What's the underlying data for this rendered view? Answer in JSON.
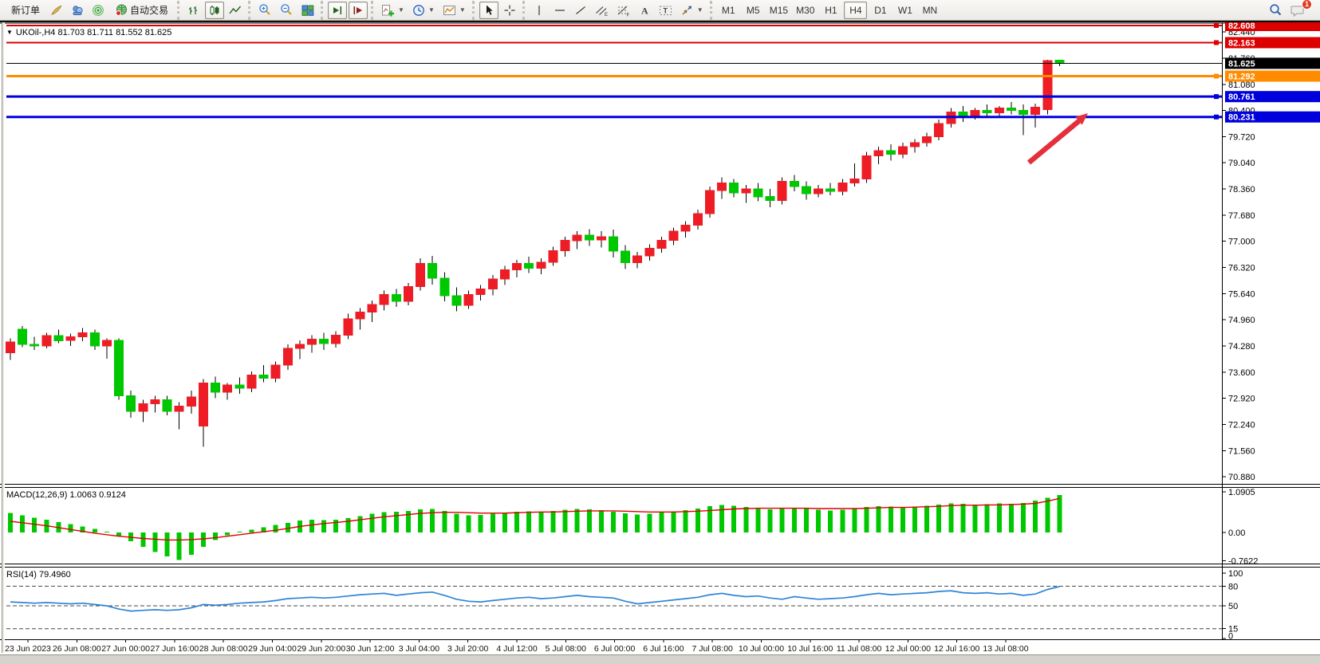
{
  "toolbar": {
    "new_order_label": "新订单",
    "autotrade_label": "自动交易",
    "timeframes": [
      "M1",
      "M5",
      "M15",
      "M30",
      "H1",
      "H4",
      "D1",
      "W1",
      "MN"
    ],
    "active_timeframe": "H4",
    "notification_count": "1"
  },
  "chart": {
    "symbol_title": "UKOil-,H4  81.703 81.711 81.552 81.625",
    "macd_label": "MACD(12,26,9) 1.0063 0.9124",
    "rsi_label": "RSI(14) 79.4960"
  },
  "chart_data": {
    "type": "candlestick",
    "symbol": "UKOil-",
    "timeframe": "H4",
    "ohlc_current": {
      "open": 81.703,
      "high": 81.711,
      "low": 81.552,
      "close": 81.625
    },
    "current_price": {
      "label": "81.625",
      "value": 81.625
    },
    "levels": [
      {
        "label": "82.608",
        "value": 82.608,
        "color": "#dd0000",
        "thickness": 2
      },
      {
        "label": "82.163",
        "value": 82.163,
        "color": "#dd0000",
        "thickness": 2
      },
      {
        "label": "81.292",
        "value": 81.292,
        "color": "#ff8c00",
        "thickness": 3
      },
      {
        "label": "80.761",
        "value": 80.761,
        "color": "#0000dd",
        "thickness": 3
      },
      {
        "label": "80.231",
        "value": 80.231,
        "color": "#0000dd",
        "thickness": 3
      }
    ],
    "price_ticks": [
      "82.440",
      "81.760",
      "81.080",
      "80.400",
      "79.720",
      "79.040",
      "78.360",
      "77.680",
      "77.000",
      "76.320",
      "75.640",
      "74.960",
      "74.280",
      "73.600",
      "72.920",
      "72.240",
      "71.560",
      "70.880"
    ],
    "dates": [
      "23 Jun 2023",
      "26 Jun 08:00",
      "27 Jun 00:00",
      "27 Jun 16:00",
      "28 Jun 08:00",
      "29 Jun 04:00",
      "29 Jun 20:00",
      "30 Jun 12:00",
      "3 Jul 04:00",
      "3 Jul 20:00",
      "4 Jul 12:00",
      "5 Jul 08:00",
      "6 Jul 00:00",
      "6 Jul 16:00",
      "7 Jul 08:00",
      "10 Jul 00:00",
      "10 Jul 16:00",
      "11 Jul 08:00",
      "12 Jul 00:00",
      "12 Jul 16:00",
      "13 Jul 08:00"
    ],
    "candles": [
      [
        74.1,
        74.48,
        73.92,
        74.38
      ],
      [
        74.72,
        74.8,
        74.25,
        74.32
      ],
      [
        74.32,
        74.52,
        74.18,
        74.28
      ],
      [
        74.28,
        74.62,
        74.22,
        74.55
      ],
      [
        74.55,
        74.7,
        74.35,
        74.42
      ],
      [
        74.42,
        74.6,
        74.28,
        74.52
      ],
      [
        74.52,
        74.75,
        74.4,
        74.62
      ],
      [
        74.62,
        74.7,
        74.18,
        74.28
      ],
      [
        74.28,
        74.48,
        73.95,
        74.42
      ],
      [
        74.42,
        74.48,
        72.88,
        72.98
      ],
      [
        72.98,
        73.12,
        72.42,
        72.58
      ],
      [
        72.58,
        72.88,
        72.3,
        72.78
      ],
      [
        72.78,
        72.98,
        72.55,
        72.88
      ],
      [
        72.88,
        72.98,
        72.48,
        72.58
      ],
      [
        72.58,
        72.82,
        72.12,
        72.72
      ],
      [
        72.72,
        73.12,
        72.52,
        72.95
      ],
      [
        72.2,
        73.42,
        71.66,
        73.32
      ],
      [
        73.32,
        73.48,
        72.92,
        73.08
      ],
      [
        73.08,
        73.32,
        72.88,
        73.26
      ],
      [
        73.26,
        73.46,
        73.04,
        73.18
      ],
      [
        73.18,
        73.62,
        73.08,
        73.52
      ],
      [
        73.52,
        73.78,
        73.34,
        73.44
      ],
      [
        73.44,
        73.88,
        73.34,
        73.78
      ],
      [
        73.78,
        74.32,
        73.66,
        74.22
      ],
      [
        74.22,
        74.42,
        73.94,
        74.32
      ],
      [
        74.32,
        74.56,
        74.1,
        74.46
      ],
      [
        74.46,
        74.62,
        74.18,
        74.34
      ],
      [
        74.34,
        74.66,
        74.24,
        74.56
      ],
      [
        74.56,
        75.12,
        74.46,
        74.98
      ],
      [
        74.98,
        75.26,
        74.7,
        75.16
      ],
      [
        75.16,
        75.46,
        74.9,
        75.36
      ],
      [
        75.36,
        75.72,
        75.2,
        75.62
      ],
      [
        75.62,
        75.76,
        75.3,
        75.44
      ],
      [
        75.44,
        75.92,
        75.34,
        75.82
      ],
      [
        75.82,
        76.56,
        75.72,
        76.42
      ],
      [
        76.42,
        76.62,
        75.88,
        76.04
      ],
      [
        76.04,
        76.2,
        75.44,
        75.58
      ],
      [
        75.58,
        75.8,
        75.18,
        75.34
      ],
      [
        75.34,
        75.72,
        75.24,
        75.62
      ],
      [
        75.62,
        75.86,
        75.46,
        75.76
      ],
      [
        75.76,
        76.12,
        75.6,
        76.02
      ],
      [
        76.02,
        76.36,
        75.86,
        76.26
      ],
      [
        76.26,
        76.52,
        76.06,
        76.42
      ],
      [
        76.42,
        76.6,
        76.18,
        76.3
      ],
      [
        76.3,
        76.56,
        76.14,
        76.46
      ],
      [
        76.46,
        76.86,
        76.36,
        76.76
      ],
      [
        76.76,
        77.12,
        76.6,
        77.02
      ],
      [
        77.02,
        77.26,
        76.8,
        77.16
      ],
      [
        77.16,
        77.32,
        76.88,
        77.04
      ],
      [
        77.04,
        77.26,
        76.84,
        77.12
      ],
      [
        77.12,
        77.3,
        76.58,
        76.74
      ],
      [
        76.74,
        76.9,
        76.28,
        76.44
      ],
      [
        76.44,
        76.72,
        76.3,
        76.62
      ],
      [
        76.62,
        76.92,
        76.5,
        76.82
      ],
      [
        76.82,
        77.12,
        76.7,
        77.02
      ],
      [
        77.02,
        77.36,
        76.9,
        77.26
      ],
      [
        77.26,
        77.52,
        77.1,
        77.42
      ],
      [
        77.42,
        77.82,
        77.3,
        77.72
      ],
      [
        77.72,
        78.42,
        77.62,
        78.32
      ],
      [
        78.32,
        78.66,
        78.1,
        78.52
      ],
      [
        78.52,
        78.62,
        78.14,
        78.26
      ],
      [
        78.26,
        78.46,
        78.0,
        78.36
      ],
      [
        78.36,
        78.52,
        78.04,
        78.16
      ],
      [
        78.16,
        78.36,
        77.88,
        78.06
      ],
      [
        78.06,
        78.66,
        77.96,
        78.56
      ],
      [
        78.56,
        78.72,
        78.3,
        78.42
      ],
      [
        78.42,
        78.56,
        78.08,
        78.24
      ],
      [
        78.24,
        78.46,
        78.14,
        78.36
      ],
      [
        78.36,
        78.52,
        78.2,
        78.3
      ],
      [
        78.3,
        78.62,
        78.2,
        78.52
      ],
      [
        78.52,
        79.02,
        78.42,
        78.62
      ],
      [
        78.62,
        79.32,
        78.52,
        79.22
      ],
      [
        79.22,
        79.46,
        79.0,
        79.36
      ],
      [
        79.36,
        79.52,
        79.1,
        79.26
      ],
      [
        79.26,
        79.56,
        79.16,
        79.46
      ],
      [
        79.46,
        79.66,
        79.3,
        79.56
      ],
      [
        79.56,
        79.82,
        79.46,
        79.72
      ],
      [
        79.72,
        80.16,
        79.62,
        80.06
      ],
      [
        80.06,
        80.46,
        79.96,
        80.36
      ],
      [
        80.36,
        80.52,
        80.1,
        80.26
      ],
      [
        80.26,
        80.46,
        80.16,
        80.4
      ],
      [
        80.4,
        80.56,
        80.26,
        80.34
      ],
      [
        80.34,
        80.52,
        80.2,
        80.46
      ],
      [
        80.46,
        80.62,
        80.3,
        80.4
      ],
      [
        80.4,
        80.56,
        79.76,
        80.3
      ],
      [
        80.3,
        80.58,
        79.96,
        80.48
      ],
      [
        80.42,
        81.72,
        80.3,
        81.7
      ],
      [
        81.703,
        81.711,
        81.552,
        81.625
      ]
    ],
    "macd": {
      "params": "12,26,9",
      "main_value": 1.0063,
      "signal_value": 0.9124,
      "ticks": [
        "1.0905",
        "0.00",
        "-0.7622"
      ],
      "hist": [
        0.52,
        0.46,
        0.4,
        0.34,
        0.28,
        0.22,
        0.16,
        0.1,
        0.02,
        -0.1,
        -0.24,
        -0.38,
        -0.52,
        -0.64,
        -0.74,
        -0.6,
        -0.38,
        -0.2,
        -0.08,
        0.02,
        0.08,
        0.14,
        0.2,
        0.26,
        0.32,
        0.34,
        0.33,
        0.34,
        0.38,
        0.44,
        0.5,
        0.55,
        0.56,
        0.58,
        0.62,
        0.63,
        0.58,
        0.5,
        0.46,
        0.47,
        0.5,
        0.53,
        0.56,
        0.57,
        0.56,
        0.58,
        0.61,
        0.63,
        0.62,
        0.6,
        0.56,
        0.51,
        0.48,
        0.5,
        0.53,
        0.57,
        0.6,
        0.64,
        0.7,
        0.74,
        0.72,
        0.68,
        0.65,
        0.62,
        0.64,
        0.66,
        0.64,
        0.61,
        0.59,
        0.61,
        0.64,
        0.68,
        0.71,
        0.69,
        0.67,
        0.69,
        0.72,
        0.75,
        0.78,
        0.77,
        0.75,
        0.76,
        0.78,
        0.77,
        0.79,
        0.85,
        0.93,
        1.0063
      ],
      "signal": [
        0.3,
        0.26,
        0.22,
        0.18,
        0.13,
        0.08,
        0.03,
        -0.02,
        -0.06,
        -0.1,
        -0.13,
        -0.16,
        -0.18,
        -0.2,
        -0.2,
        -0.19,
        -0.17,
        -0.14,
        -0.1,
        -0.06,
        -0.02,
        0.02,
        0.06,
        0.11,
        0.16,
        0.2,
        0.24,
        0.27,
        0.3,
        0.34,
        0.38,
        0.42,
        0.45,
        0.48,
        0.51,
        0.53,
        0.54,
        0.54,
        0.53,
        0.52,
        0.52,
        0.52,
        0.53,
        0.54,
        0.55,
        0.55,
        0.56,
        0.57,
        0.58,
        0.58,
        0.58,
        0.57,
        0.56,
        0.55,
        0.55,
        0.55,
        0.56,
        0.57,
        0.59,
        0.61,
        0.63,
        0.64,
        0.65,
        0.65,
        0.65,
        0.65,
        0.65,
        0.64,
        0.64,
        0.64,
        0.64,
        0.65,
        0.66,
        0.67,
        0.67,
        0.68,
        0.69,
        0.7,
        0.72,
        0.73,
        0.73,
        0.74,
        0.74,
        0.75,
        0.76,
        0.78,
        0.84,
        0.9124
      ]
    },
    "rsi": {
      "period": 14,
      "value": 79.496,
      "ticks": [
        "100",
        "80",
        "50",
        "15",
        "0"
      ],
      "levels": [
        80,
        50,
        15
      ],
      "series": [
        56,
        55,
        54,
        55,
        54,
        53,
        54,
        52,
        50,
        45,
        42,
        43,
        44,
        43,
        44,
        47,
        52,
        51,
        52,
        54,
        55,
        56,
        58,
        61,
        62,
        63,
        62,
        63,
        65,
        67,
        68,
        69,
        66,
        68,
        70,
        71,
        66,
        60,
        57,
        56,
        58,
        60,
        62,
        63,
        61,
        62,
        64,
        66,
        64,
        63,
        62,
        57,
        53,
        55,
        57,
        59,
        61,
        63,
        67,
        69,
        66,
        64,
        65,
        62,
        60,
        64,
        62,
        60,
        61,
        62,
        64,
        67,
        69,
        67,
        68,
        69,
        70,
        72,
        73,
        70,
        69,
        70,
        68,
        69,
        66,
        68,
        75,
        79.5
      ]
    },
    "annotations": [
      {
        "type": "arrow",
        "direction": "up-right",
        "target": "80.231 level",
        "color": "#e3303c"
      }
    ],
    "colors": {
      "up": "#ee1c24",
      "down": "#00c800",
      "wick": "#000000",
      "macd_hist": "#00c800",
      "macd_signal": "#e00000",
      "rsi_line": "#2f84d6",
      "arrow": "#e3303c",
      "level_red": "#dd0000",
      "level_orange": "#ff8c00",
      "level_blue": "#0000dd",
      "current_badge": "#000000"
    }
  }
}
